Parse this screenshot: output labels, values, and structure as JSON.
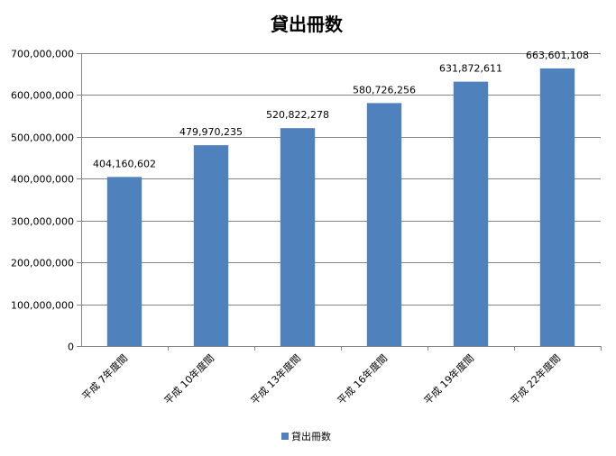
{
  "chart_data": {
    "type": "bar",
    "title": "貸出冊数",
    "categories": [
      "平成 7年度間",
      "平成 10年度間",
      "平成 13年度間",
      "平成 16年度間",
      "平成 19年度間",
      "平成 22年度間"
    ],
    "series": [
      {
        "name": "貸出冊数",
        "values": [
          404160602,
          479970235,
          520822278,
          580726256,
          631872611,
          663601108
        ],
        "labels": [
          "404,160,602",
          "479,970,235",
          "520,822,278",
          "580,726,256",
          "631,872,611",
          "663,601,108"
        ]
      }
    ],
    "yticks": [
      "0",
      "100,000,000",
      "200,000,000",
      "300,000,000",
      "400,000,000",
      "500,000,000",
      "600,000,000",
      "700,000,000"
    ],
    "ylim": [
      0,
      700000000
    ],
    "grid": true,
    "legend_position": "bottom",
    "colors": {
      "bar": "#4F81BD",
      "grid": "#868686"
    }
  }
}
